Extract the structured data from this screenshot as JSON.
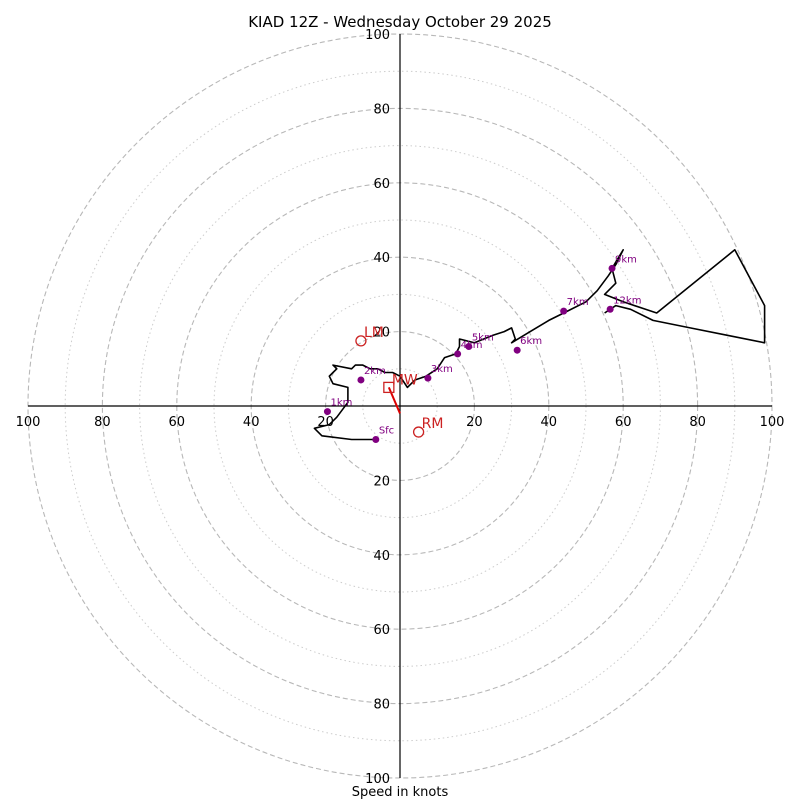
{
  "chart_data": {
    "type": "hodograph",
    "title": "KIAD 12Z - Wednesday October 29 2025",
    "xlabel": "Speed in knots",
    "ylabel": "",
    "xlim": [
      -100,
      100
    ],
    "ylim": [
      -100,
      100
    ],
    "units": "knots",
    "grid": true,
    "rings_major": [
      20,
      40,
      60,
      80,
      100
    ],
    "rings_minor": [
      10,
      30,
      50,
      70,
      90
    ],
    "x_tick_labels": [
      "100",
      "80",
      "60",
      "40",
      "20",
      "20",
      "40",
      "60",
      "80",
      "100"
    ],
    "y_tick_labels": [
      "100",
      "80",
      "60",
      "40",
      "20",
      "20",
      "40",
      "60",
      "80",
      "100"
    ],
    "x_tick_values": [
      -100,
      -80,
      -60,
      -40,
      -20,
      20,
      40,
      60,
      80,
      100
    ],
    "y_tick_values": [
      100,
      80,
      60,
      40,
      20,
      -20,
      -40,
      -60,
      -80,
      -100
    ],
    "trace": {
      "u": [
        -6,
        -10,
        -13,
        -21,
        -23,
        -19,
        -17,
        -14,
        -14,
        -18,
        -19,
        -18,
        -17,
        -18,
        -13,
        -12,
        -10,
        -8,
        -6,
        -4,
        -2,
        0,
        2,
        4,
        7,
        10,
        12,
        15,
        16,
        16,
        20,
        25,
        28,
        30,
        31,
        30,
        35,
        40,
        44,
        50,
        53,
        56,
        58,
        60,
        57,
        58,
        55,
        60,
        66,
        69,
        90,
        98,
        98,
        88,
        78,
        68,
        62,
        58,
        55
      ],
      "v": [
        -9,
        -9,
        -9,
        -8,
        -6,
        -5,
        -3,
        1,
        5,
        6,
        8,
        9,
        10,
        11,
        10,
        11,
        11,
        10,
        10,
        9,
        9,
        8,
        5,
        7,
        8,
        10,
        13,
        14,
        16,
        18,
        17,
        19,
        20,
        21,
        18,
        17,
        20,
        23,
        25,
        28,
        31,
        35,
        38,
        42,
        37,
        33,
        30,
        28,
        26,
        25,
        42,
        27,
        17,
        19,
        21,
        23,
        26,
        27,
        25
      ]
    },
    "height_markers": [
      {
        "label": "Sfc",
        "u": -6.5,
        "v": -9
      },
      {
        "label": "1km",
        "u": -19.5,
        "v": -1.5
      },
      {
        "label": "2km",
        "u": -10.5,
        "v": 7
      },
      {
        "label": "3km",
        "u": 7.5,
        "v": 7.5
      },
      {
        "label": "4km",
        "u": 15.5,
        "v": 14
      },
      {
        "label": "5km",
        "u": 18.5,
        "v": 16
      },
      {
        "label": "6km",
        "u": 31.5,
        "v": 15
      },
      {
        "label": "7km",
        "u": 44,
        "v": 25.5
      },
      {
        "label": "9km",
        "u": 57,
        "v": 37
      },
      {
        "label": "12km",
        "u": 56.5,
        "v": 26
      }
    ],
    "storm_motion": {
      "LM": {
        "label": "LM",
        "u": -10.5,
        "v": 17.5
      },
      "RM": {
        "label": "RM",
        "u": 5,
        "v": -7
      },
      "MW": {
        "label": "MW",
        "u": -3,
        "v": 5
      }
    },
    "mean_wind_vector": {
      "from_u": -3,
      "from_v": 5,
      "to_u": 0,
      "to_v": -2
    },
    "colors": {
      "trace": "#000000",
      "markers": "#800080",
      "storm_motion": "#cc2222",
      "mean_wind": "#dd0000",
      "grid_major": "#b8b8b8",
      "grid_minor": "#cccccc"
    }
  }
}
